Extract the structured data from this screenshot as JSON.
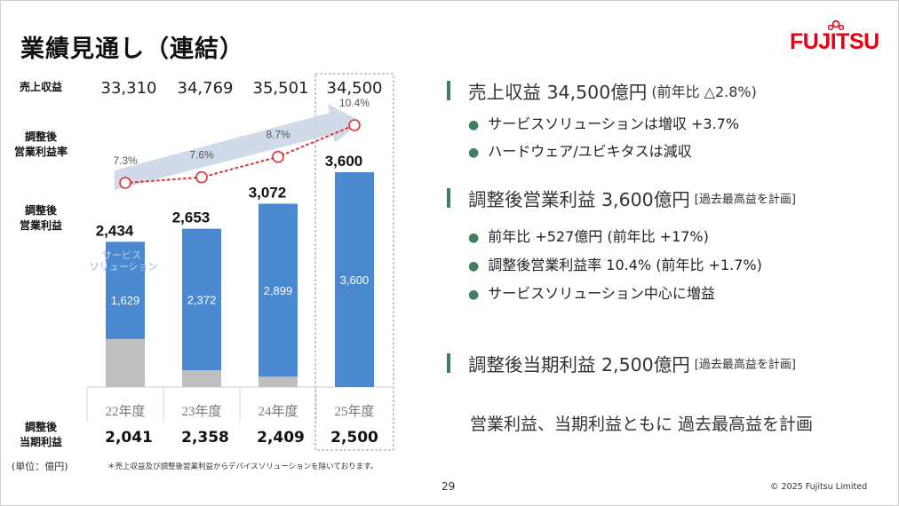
{
  "title": "業績見通し（連結）",
  "logo_text": "FUJITSU",
  "labels": {
    "revenue": "売上収益",
    "margin": [
      "調整後",
      "営業利益率"
    ],
    "op_income": [
      "調整後",
      "営業利益"
    ],
    "net_income": [
      "調整後",
      "当期利益"
    ],
    "unit": "(単位：億円)",
    "service_solutions": [
      "サービス",
      "ソリューション"
    ]
  },
  "footnote": "＊売上収益及び調整後営業利益からデバイスソリューションを除いております。",
  "chart_data": {
    "type": "bar",
    "categories": [
      "22年度",
      "23年度",
      "24年度",
      "25年度"
    ],
    "revenue": [
      "33,310",
      "34,769",
      "35,501",
      "34,500"
    ],
    "op_income_total": [
      2434,
      2653,
      3072,
      3600
    ],
    "op_income_total_labels": [
      "2,434",
      "2,653",
      "3,072",
      "3,600"
    ],
    "series": [
      {
        "name": "サービスソリューション",
        "values": [
          1629,
          2372,
          2899,
          3600
        ],
        "labels": [
          "1,629",
          "2,372",
          "2,899",
          "3,600"
        ],
        "color": "#4a89d0"
      },
      {
        "values": [
          805,
          281,
          173,
          0
        ],
        "color": "#bfbfbf"
      }
    ],
    "margin": [
      7.3,
      7.6,
      8.7,
      10.4
    ],
    "margin_labels": [
      "7.3%",
      "7.6%",
      "8.7%",
      "10.4%"
    ],
    "net_income": [
      "2,041",
      "2,358",
      "2,409",
      "2,500"
    ],
    "highlight_category": "25年度"
  },
  "sections": [
    {
      "main": "売上収益 34,500億円",
      "sub": "(前年比 △2.8%)",
      "bullets": [
        "サービスソリューションは増収 +3.7%",
        "ハードウェア/ユビキタスは減収"
      ]
    },
    {
      "main": "調整後営業利益 3,600億円",
      "note": "[過去最高益を計画]",
      "bullets": [
        "前年比 +527億円 (前年比 +17%)",
        "調整後営業利益率 10.4% (前年比 +1.7%)",
        "サービスソリューション中心に増益"
      ]
    },
    {
      "main": "調整後当期利益 2,500億円",
      "note": "[過去最高益を計画]",
      "bullets": []
    }
  ],
  "summary": "営業利益、当期利益ともに 過去最高益を計画",
  "page_number": "29",
  "copyright": "© 2025 Fujitsu Limited",
  "colors": {
    "bar_blue": "#4a89d0",
    "bar_gray": "#bfbfbf",
    "accent_red": "#e03030",
    "section_bar": "#3f7f5f",
    "arrow": "#c9d4e4"
  }
}
